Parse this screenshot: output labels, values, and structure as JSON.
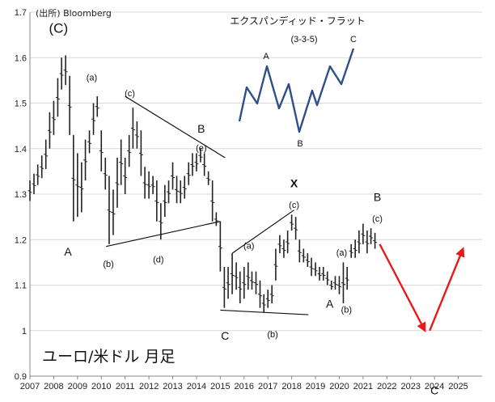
{
  "chart_data": {
    "type": "ohlc",
    "source": "(出所)  Bloomberg",
    "title": "ユーロ/米ドル 月足",
    "ylim": [
      0.9,
      1.7
    ],
    "y_ticks": [
      "0.9",
      "1",
      "1.1",
      "1.2",
      "1.3",
      "1.4",
      "1.5",
      "1.6",
      "1.7"
    ],
    "xlim": [
      2007,
      2026
    ],
    "x_ticks": [
      "2007",
      "2008",
      "2009",
      "2010",
      "2011",
      "2012",
      "2013",
      "2014",
      "2015",
      "2016",
      "2017",
      "2018",
      "2019",
      "2020",
      "2021",
      "2022",
      "2023",
      "2024",
      "2025"
    ],
    "series": [
      {
        "values": [
          {
            "t": 2007.0,
            "hl": [
              1.285,
              1.33
            ]
          },
          {
            "t": 2007.17,
            "hl": [
              1.3,
              1.345
            ]
          },
          {
            "t": 2007.33,
            "hl": [
              1.32,
              1.365
            ]
          },
          {
            "t": 2007.5,
            "hl": [
              1.335,
              1.385
            ]
          },
          {
            "t": 2007.67,
            "hl": [
              1.355,
              1.42
            ]
          },
          {
            "t": 2007.83,
            "hl": [
              1.4,
              1.48
            ]
          },
          {
            "t": 2008.0,
            "hl": [
              1.43,
              1.505
            ]
          },
          {
            "t": 2008.17,
            "hl": [
              1.47,
              1.555
            ]
          },
          {
            "t": 2008.33,
            "hl": [
              1.53,
              1.6
            ]
          },
          {
            "t": 2008.5,
            "hl": [
              1.54,
              1.605
            ]
          },
          {
            "t": 2008.67,
            "hl": [
              1.43,
              1.56
            ]
          },
          {
            "t": 2008.83,
            "hl": [
              1.24,
              1.43
            ]
          },
          {
            "t": 2009.0,
            "hl": [
              1.25,
              1.39
            ]
          },
          {
            "t": 2009.17,
            "hl": [
              1.26,
              1.37
            ]
          },
          {
            "t": 2009.33,
            "hl": [
              1.33,
              1.42
            ]
          },
          {
            "t": 2009.5,
            "hl": [
              1.39,
              1.44
            ]
          },
          {
            "t": 2009.67,
            "hl": [
              1.43,
              1.5
            ]
          },
          {
            "t": 2009.83,
            "hl": [
              1.47,
              1.515
            ]
          },
          {
            "t": 2010.0,
            "hl": [
              1.35,
              1.44
            ]
          },
          {
            "t": 2010.17,
            "hl": [
              1.31,
              1.38
            ]
          },
          {
            "t": 2010.33,
            "hl": [
              1.19,
              1.34
            ]
          },
          {
            "t": 2010.5,
            "hl": [
              1.21,
              1.31
            ]
          },
          {
            "t": 2010.67,
            "hl": [
              1.27,
              1.38
            ]
          },
          {
            "t": 2010.83,
            "hl": [
              1.32,
              1.42
            ]
          },
          {
            "t": 2011.0,
            "hl": [
              1.3,
              1.38
            ]
          },
          {
            "t": 2011.17,
            "hl": [
              1.36,
              1.43
            ]
          },
          {
            "t": 2011.33,
            "hl": [
              1.4,
              1.49
            ]
          },
          {
            "t": 2011.5,
            "hl": [
              1.4,
              1.46
            ]
          },
          {
            "t": 2011.67,
            "hl": [
              1.34,
              1.44
            ]
          },
          {
            "t": 2011.83,
            "hl": [
              1.29,
              1.36
            ]
          },
          {
            "t": 2012.0,
            "hl": [
              1.29,
              1.35
            ]
          },
          {
            "t": 2012.17,
            "hl": [
              1.3,
              1.34
            ]
          },
          {
            "t": 2012.33,
            "hl": [
              1.24,
              1.33
            ]
          },
          {
            "t": 2012.5,
            "hl": [
              1.2,
              1.28
            ]
          },
          {
            "t": 2012.67,
            "hl": [
              1.25,
              1.32
            ]
          },
          {
            "t": 2012.83,
            "hl": [
              1.28,
              1.33
            ]
          },
          {
            "t": 2013.0,
            "hl": [
              1.31,
              1.37
            ]
          },
          {
            "t": 2013.17,
            "hl": [
              1.28,
              1.34
            ]
          },
          {
            "t": 2013.33,
            "hl": [
              1.28,
              1.33
            ]
          },
          {
            "t": 2013.5,
            "hl": [
              1.29,
              1.34
            ]
          },
          {
            "t": 2013.67,
            "hl": [
              1.32,
              1.37
            ]
          },
          {
            "t": 2013.83,
            "hl": [
              1.34,
              1.39
            ]
          },
          {
            "t": 2014.0,
            "hl": [
              1.35,
              1.39
            ]
          },
          {
            "t": 2014.17,
            "hl": [
              1.37,
              1.4
            ]
          },
          {
            "t": 2014.33,
            "hl": [
              1.34,
              1.39
            ]
          },
          {
            "t": 2014.5,
            "hl": [
              1.32,
              1.35
            ]
          },
          {
            "t": 2014.67,
            "hl": [
              1.24,
              1.33
            ]
          },
          {
            "t": 2014.83,
            "hl": [
              1.23,
              1.26
            ]
          },
          {
            "t": 2015.0,
            "hl": [
              1.13,
              1.24
            ]
          },
          {
            "t": 2015.17,
            "hl": [
              1.05,
              1.14
            ]
          },
          {
            "t": 2015.33,
            "hl": [
              1.07,
              1.14
            ]
          },
          {
            "t": 2015.5,
            "hl": [
              1.08,
              1.17
            ]
          },
          {
            "t": 2015.67,
            "hl": [
              1.09,
              1.15
            ]
          },
          {
            "t": 2015.83,
            "hl": [
              1.06,
              1.13
            ]
          },
          {
            "t": 2016.0,
            "hl": [
              1.07,
              1.14
            ]
          },
          {
            "t": 2016.17,
            "hl": [
              1.09,
              1.15
            ]
          },
          {
            "t": 2016.33,
            "hl": [
              1.09,
              1.13
            ]
          },
          {
            "t": 2016.5,
            "hl": [
              1.08,
              1.13
            ]
          },
          {
            "t": 2016.67,
            "hl": [
              1.05,
              1.11
            ]
          },
          {
            "t": 2016.83,
            "hl": [
              1.04,
              1.08
            ]
          },
          {
            "t": 2017.0,
            "hl": [
              1.05,
              1.09
            ]
          },
          {
            "t": 2017.17,
            "hl": [
              1.06,
              1.1
            ]
          },
          {
            "t": 2017.33,
            "hl": [
              1.11,
              1.18
            ]
          },
          {
            "t": 2017.5,
            "hl": [
              1.17,
              1.21
            ]
          },
          {
            "t": 2017.67,
            "hl": [
              1.16,
              1.2
            ]
          },
          {
            "t": 2017.83,
            "hl": [
              1.17,
              1.22
            ]
          },
          {
            "t": 2018.0,
            "hl": [
              1.22,
              1.255
            ]
          },
          {
            "t": 2018.17,
            "hl": [
              1.2,
              1.25
            ]
          },
          {
            "t": 2018.33,
            "hl": [
              1.15,
              1.2
            ]
          },
          {
            "t": 2018.5,
            "hl": [
              1.15,
              1.18
            ]
          },
          {
            "t": 2018.67,
            "hl": [
              1.14,
              1.17
            ]
          },
          {
            "t": 2018.83,
            "hl": [
              1.12,
              1.16
            ]
          },
          {
            "t": 2019.0,
            "hl": [
              1.12,
              1.15
            ]
          },
          {
            "t": 2019.17,
            "hl": [
              1.11,
              1.14
            ]
          },
          {
            "t": 2019.33,
            "hl": [
              1.11,
              1.14
            ]
          },
          {
            "t": 2019.5,
            "hl": [
              1.1,
              1.13
            ]
          },
          {
            "t": 2019.67,
            "hl": [
              1.09,
              1.11
            ]
          },
          {
            "t": 2019.83,
            "hl": [
              1.09,
              1.12
            ]
          },
          {
            "t": 2020.0,
            "hl": [
              1.08,
              1.12
            ]
          },
          {
            "t": 2020.17,
            "hl": [
              1.06,
              1.15
            ]
          },
          {
            "t": 2020.33,
            "hl": [
              1.09,
              1.14
            ]
          },
          {
            "t": 2020.5,
            "hl": [
              1.16,
              1.19
            ]
          },
          {
            "t": 2020.67,
            "hl": [
              1.16,
              1.2
            ]
          },
          {
            "t": 2020.83,
            "hl": [
              1.17,
              1.22
            ]
          },
          {
            "t": 2021.0,
            "hl": [
              1.19,
              1.235
            ]
          },
          {
            "t": 2021.17,
            "hl": [
              1.17,
              1.22
            ]
          },
          {
            "t": 2021.33,
            "hl": [
              1.19,
              1.225
            ]
          },
          {
            "t": 2021.5,
            "hl": [
              1.18,
              1.215
            ]
          }
        ]
      }
    ],
    "annotations": [
      {
        "text": "(C)",
        "x": 2008.2,
        "y": 1.655,
        "size": 17
      },
      {
        "text": "(a)",
        "x": 2009.6,
        "y": 1.55,
        "size": 11
      },
      {
        "text": "(c)",
        "x": 2011.2,
        "y": 1.515,
        "size": 11
      },
      {
        "text": "B",
        "x": 2014.2,
        "y": 1.435,
        "size": 14
      },
      {
        "text": "(e)",
        "x": 2014.2,
        "y": 1.395,
        "size": 11
      },
      {
        "text": "A",
        "x": 2008.6,
        "y": 1.165,
        "size": 14
      },
      {
        "text": "(b)",
        "x": 2010.3,
        "y": 1.14,
        "size": 11
      },
      {
        "text": "(d)",
        "x": 2012.4,
        "y": 1.15,
        "size": 11
      },
      {
        "text": "X",
        "x": 2018.1,
        "y": 1.315,
        "size": 14
      },
      {
        "text": "(c)",
        "x": 2018.1,
        "y": 1.27,
        "size": 11
      },
      {
        "text": "(a)",
        "x": 2016.2,
        "y": 1.18,
        "size": 11
      },
      {
        "text": "C",
        "x": 2015.2,
        "y": 0.98,
        "size": 14
      },
      {
        "text": "(b)",
        "x": 2017.2,
        "y": 0.985,
        "size": 11
      },
      {
        "text": "(a)",
        "x": 2020.1,
        "y": 1.165,
        "size": 11
      },
      {
        "text": "A",
        "x": 2019.6,
        "y": 1.05,
        "size": 14
      },
      {
        "text": "(b)",
        "x": 2020.3,
        "y": 1.04,
        "size": 11
      },
      {
        "text": "B",
        "x": 2021.6,
        "y": 1.285,
        "size": 14
      },
      {
        "text": "(c)",
        "x": 2021.6,
        "y": 1.24,
        "size": 11
      },
      {
        "text": "C",
        "x": 2024.0,
        "y": 0.86,
        "size": 14
      }
    ],
    "trend_lines": [
      {
        "from": [
          2011.0,
          1.515
        ],
        "to": [
          2015.2,
          1.38
        ]
      },
      {
        "from": [
          2010.2,
          1.185
        ],
        "to": [
          2015.0,
          1.24
        ]
      },
      {
        "from": [
          2015.5,
          1.17
        ],
        "to": [
          2018.1,
          1.265
        ]
      },
      {
        "from": [
          2015.0,
          1.045
        ],
        "to": [
          2018.7,
          1.035
        ]
      }
    ],
    "forecast_arrows": [
      {
        "from": [
          2021.7,
          1.19
        ],
        "to": [
          2023.6,
          1.0
        ]
      },
      {
        "from": [
          2023.8,
          1.0
        ],
        "to": [
          2025.2,
          1.18
        ]
      }
    ],
    "inset": {
      "title": "エクスパンディッド・フラット",
      "subtitle": "(3-3-5)",
      "labels": [
        "A",
        "B",
        "C"
      ]
    }
  }
}
